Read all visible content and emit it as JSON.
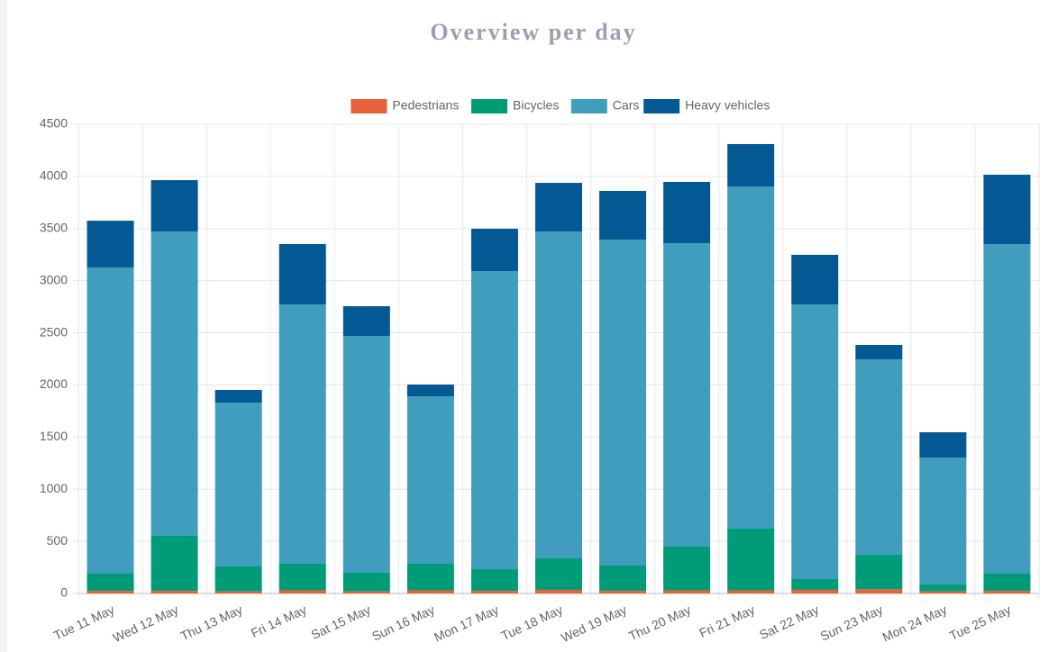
{
  "chart_data": {
    "type": "stacked_bar",
    "title": "Overview per day",
    "categories": [
      "Tue 11 May",
      "Wed 12 May",
      "Thu 13 May",
      "Fri 14 May",
      "Sat 15 May",
      "Sun 16 May",
      "Mon 17 May",
      "Tue 18 May",
      "Wed 19 May",
      "Thu 20 May",
      "Fri 21 May",
      "Sat 22 May",
      "Sun 23 May",
      "Mon 24 May",
      "Tue 25 May"
    ],
    "series": [
      {
        "name": "Pedestrians",
        "color": "#e8603c",
        "values": [
          25,
          25,
          20,
          30,
          20,
          30,
          25,
          35,
          25,
          30,
          30,
          35,
          40,
          20,
          25
        ]
      },
      {
        "name": "Bicycles",
        "color": "#009b77",
        "values": [
          165,
          528,
          239,
          255,
          179,
          255,
          208,
          302,
          243,
          419,
          592,
          103,
          331,
          66,
          165
        ]
      },
      {
        "name": "Cars",
        "color": "#419dbd",
        "values": [
          2937,
          2919,
          1572,
          2487,
          2271,
          1606,
          2859,
          3135,
          3126,
          2911,
          3282,
          2634,
          1875,
          1218,
          3161
        ]
      },
      {
        "name": "Heavy vehicles",
        "color": "#045894",
        "values": [
          448,
          492,
          121,
          579,
          285,
          113,
          406,
          466,
          467,
          587,
          406,
          476,
          138,
          242,
          665
        ]
      }
    ],
    "ylim": [
      0,
      4500
    ],
    "yticks": [
      0,
      500,
      1000,
      1500,
      2000,
      2500,
      3000,
      3500,
      4000,
      4500
    ],
    "grid": true,
    "legend": "top"
  }
}
